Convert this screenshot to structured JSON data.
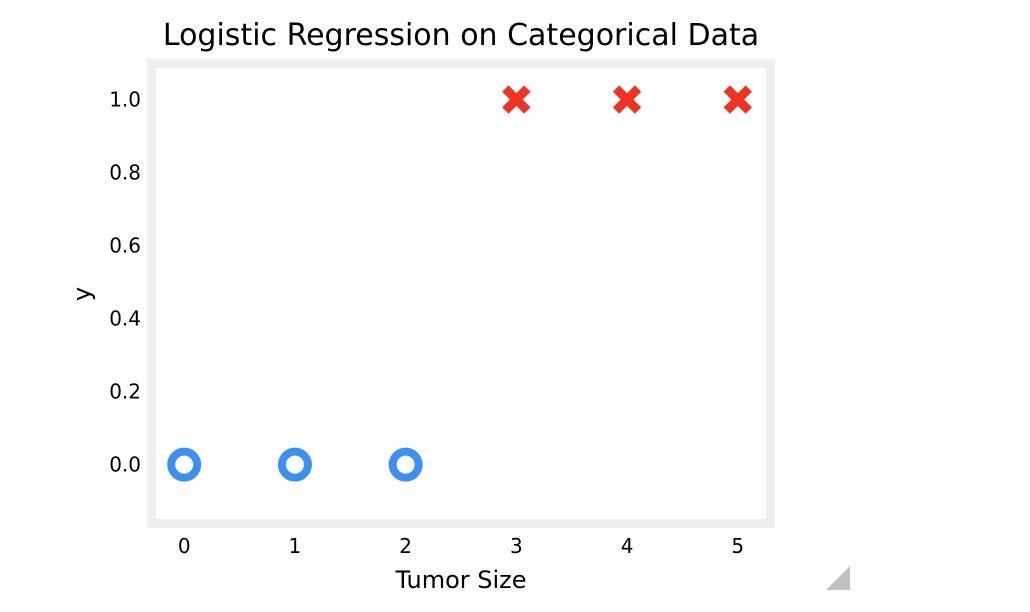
{
  "chart_data": {
    "type": "scatter",
    "title": "Logistic Regression on Categorical Data",
    "xlabel": "Tumor Size",
    "ylabel": "y",
    "xlim": [
      -0.3,
      5.3
    ],
    "ylim": [
      -0.16,
      1.1
    ],
    "xticks": [
      0,
      1,
      2,
      3,
      4,
      5
    ],
    "yticks": [
      0.0,
      0.2,
      0.4,
      0.6,
      0.8,
      1.0
    ],
    "xtick_labels": [
      "0",
      "1",
      "2",
      "3",
      "4",
      "5"
    ],
    "ytick_labels": [
      "0.0",
      "0.2",
      "0.4",
      "0.6",
      "0.8",
      "1.0"
    ],
    "grid": false,
    "series": [
      {
        "marker": "circle-open",
        "color": "#3d8ff0",
        "x": [
          0,
          1,
          2
        ],
        "y": [
          0,
          0,
          0
        ]
      },
      {
        "marker": "x-filled",
        "color": "#f03223",
        "x": [
          3,
          4,
          5
        ],
        "y": [
          1,
          1,
          1
        ]
      }
    ]
  },
  "colors": {
    "frame": "#efefef",
    "resize_handle": "#c0c0c0"
  }
}
